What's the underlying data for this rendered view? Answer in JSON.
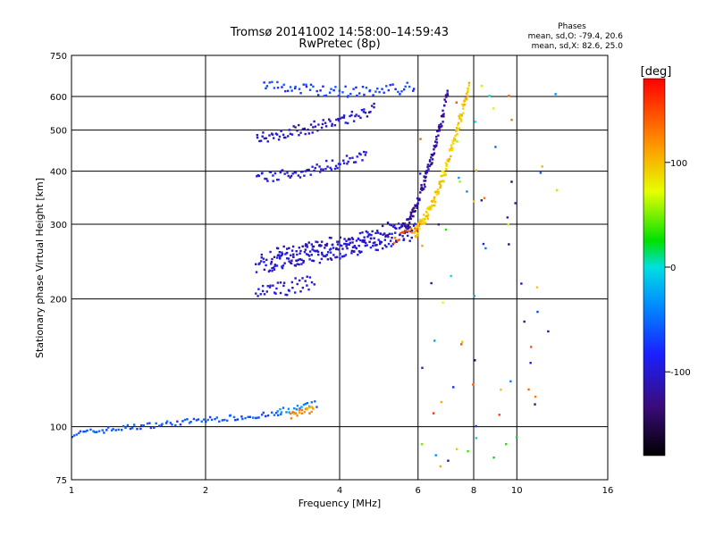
{
  "chart_data": {
    "type": "scatter",
    "title": "Tromsø 20141002 14:58:00–14:59:43",
    "subtitle": "RwPretec (8p)",
    "xlabel": "Frequency [MHz]",
    "ylabel": "Stationary phase Virtual Height [km]",
    "x_scale": "log",
    "y_scale": "log",
    "xlim": [
      1,
      16
    ],
    "ylim": [
      75,
      750
    ],
    "x_ticks": [
      "1",
      "2",
      "4",
      "6",
      "8",
      "10",
      "16"
    ],
    "x_tick_values": [
      1,
      2,
      4,
      6,
      8,
      10,
      16
    ],
    "y_ticks": [
      "75",
      "100",
      "200",
      "300",
      "400",
      "500",
      "600",
      "750"
    ],
    "y_tick_values": [
      75,
      100,
      200,
      300,
      400,
      500,
      600,
      750
    ],
    "grid": true,
    "phase_box": {
      "title": "Phases",
      "line_o": "mean, sd,O: -79.4, 20.6",
      "line_x": "mean, sd,X:  82.6, 25.0"
    },
    "colorbar": {
      "label": "[deg]",
      "range": [
        -180,
        180
      ],
      "ticks": [
        "100",
        "0",
        "-100"
      ],
      "tick_values": [
        100,
        0,
        -100
      ]
    },
    "series": [
      {
        "kind": "curve",
        "f0": 1.0,
        "f1": 2.95,
        "h": [
          96,
          103,
          107
        ],
        "phase": -60,
        "n": 90,
        "jitter": 0.015
      },
      {
        "kind": "curve",
        "f0": 2.9,
        "f1": 3.55,
        "h": [
          108,
          110,
          113
        ],
        "phase": -40,
        "n": 20,
        "jitter": 0.02
      },
      {
        "kind": "curve",
        "f0": 3.1,
        "f1": 3.5,
        "h": [
          106,
          108,
          110
        ],
        "phase": 120,
        "n": 20,
        "jitter": 0.02
      },
      {
        "kind": "curve",
        "f0": 2.6,
        "f1": 5.9,
        "h": [
          242,
          255,
          290
        ],
        "phase": -95,
        "n": 160,
        "jitter": 0.05
      },
      {
        "kind": "curve",
        "f0": 2.8,
        "f1": 5.7,
        "h": [
          248,
          262,
          295
        ],
        "phase": -110,
        "n": 120,
        "jitter": 0.06
      },
      {
        "kind": "curve",
        "f0": 2.6,
        "f1": 3.5,
        "h": [
          205,
          212,
          220
        ],
        "phase": -100,
        "n": 40,
        "jitter": 0.04
      },
      {
        "kind": "curve",
        "f0": 5.6,
        "f1": 7.0,
        "h": [
          290,
          360,
          610
        ],
        "phase": -120,
        "n": 110,
        "jitter": 0.03
      },
      {
        "kind": "curve",
        "f0": 5.9,
        "f1": 7.8,
        "h": [
          285,
          340,
          640
        ],
        "phase": 95,
        "n": 140,
        "jitter": 0.03
      },
      {
        "kind": "curve",
        "f0": 5.3,
        "f1": 6.0,
        "h": [
          275,
          285,
          295
        ],
        "phase": 140,
        "n": 15,
        "jitter": 0.02
      },
      {
        "kind": "curve",
        "f0": 2.6,
        "f1": 4.8,
        "h": [
          480,
          500,
          560
        ],
        "phase": -105,
        "n": 80,
        "jitter": 0.03
      },
      {
        "kind": "curve",
        "f0": 2.6,
        "f1": 4.6,
        "h": [
          385,
          395,
          440
        ],
        "phase": -95,
        "n": 70,
        "jitter": 0.03
      },
      {
        "kind": "curve",
        "f0": 2.7,
        "f1": 5.9,
        "h": [
          640,
          600,
          630
        ],
        "phase": -70,
        "n": 70,
        "jitter": 0.03
      },
      {
        "kind": "scatter",
        "f0": 6.0,
        "f1": 12.5,
        "h0": 80,
        "h1": 650,
        "phase": 0,
        "n": 70,
        "random_phase": true
      }
    ]
  }
}
